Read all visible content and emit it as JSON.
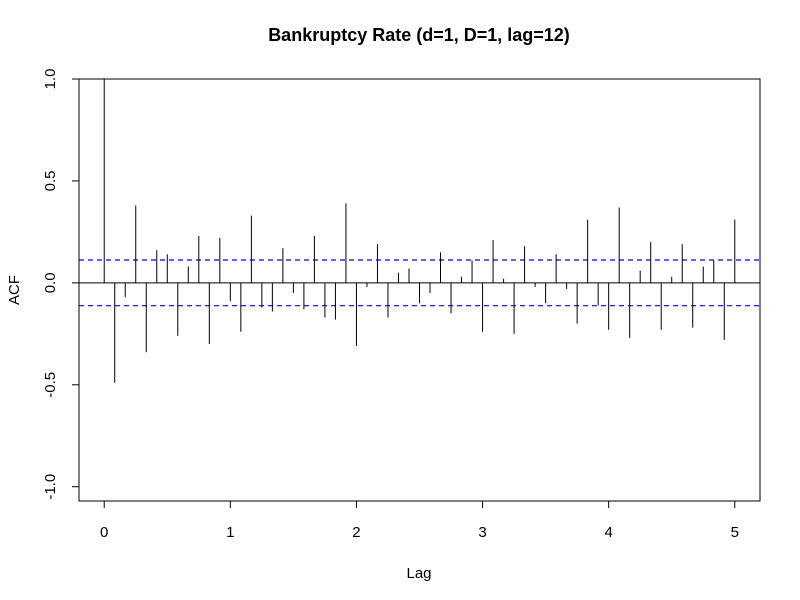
{
  "chart_data": {
    "type": "bar",
    "title": "Bankruptcy Rate (d=1, D=1, lag=12)",
    "xlabel": "Lag",
    "ylabel": "ACF",
    "xlim": [
      -0.2,
      5.2
    ],
    "ylim": [
      -1.07,
      1.0
    ],
    "x_ticks": [
      0,
      1,
      2,
      3,
      4,
      5
    ],
    "x_tick_labels": [
      "0",
      "1",
      "2",
      "3",
      "4",
      "5"
    ],
    "y_ticks": [
      -1.0,
      -0.5,
      0.0,
      0.5,
      1.0
    ],
    "y_tick_labels": [
      "-1.0",
      "-0.5",
      "0.0",
      "0.5",
      "1.0"
    ],
    "confidence_band": 0.112,
    "ci_color": "#0000ff",
    "bar_color": "#000000",
    "grid": false,
    "lag_step": 0.0833333,
    "values": [
      1.0,
      -0.49,
      -0.07,
      0.38,
      -0.34,
      0.16,
      0.14,
      -0.26,
      0.08,
      0.23,
      -0.3,
      0.22,
      -0.09,
      -0.24,
      0.33,
      -0.12,
      -0.14,
      0.17,
      -0.05,
      -0.13,
      0.23,
      -0.17,
      -0.18,
      0.39,
      -0.31,
      -0.02,
      0.19,
      -0.17,
      0.05,
      0.07,
      -0.1,
      -0.05,
      0.15,
      -0.15,
      0.03,
      0.11,
      -0.24,
      0.21,
      0.02,
      -0.25,
      0.18,
      -0.02,
      -0.1,
      0.14,
      -0.03,
      -0.2,
      0.31,
      -0.11,
      -0.23,
      0.37,
      -0.27,
      0.06,
      0.2,
      -0.23,
      0.03,
      0.19,
      -0.22,
      0.08,
      0.11,
      -0.28,
      0.31
    ]
  }
}
